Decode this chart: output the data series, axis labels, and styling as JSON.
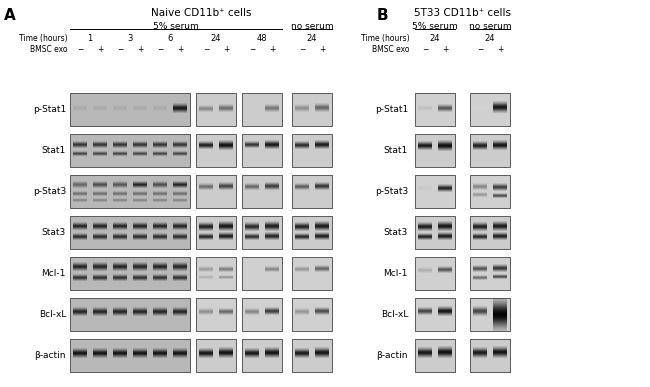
{
  "panel_A_title": "Naive CD11b⁺ cells",
  "panel_B_title": "5T33 CD11b⁺ cells",
  "markers": [
    "p-Stat1",
    "Stat1",
    "p-Stat3",
    "Stat3",
    "Mcl-1",
    "Bcl-xL",
    "β-actin"
  ],
  "label_5pct": "5% serum",
  "label_noserum": "no serum",
  "time_label": "Time (hours)",
  "bmsc_label": "BMSC exo",
  "bg_white": "#ffffff",
  "blot_bg_main": "#c0c0c0",
  "blot_bg_light": "#d0d0d0",
  "blot_bg_lighter": "#d8d8d8"
}
